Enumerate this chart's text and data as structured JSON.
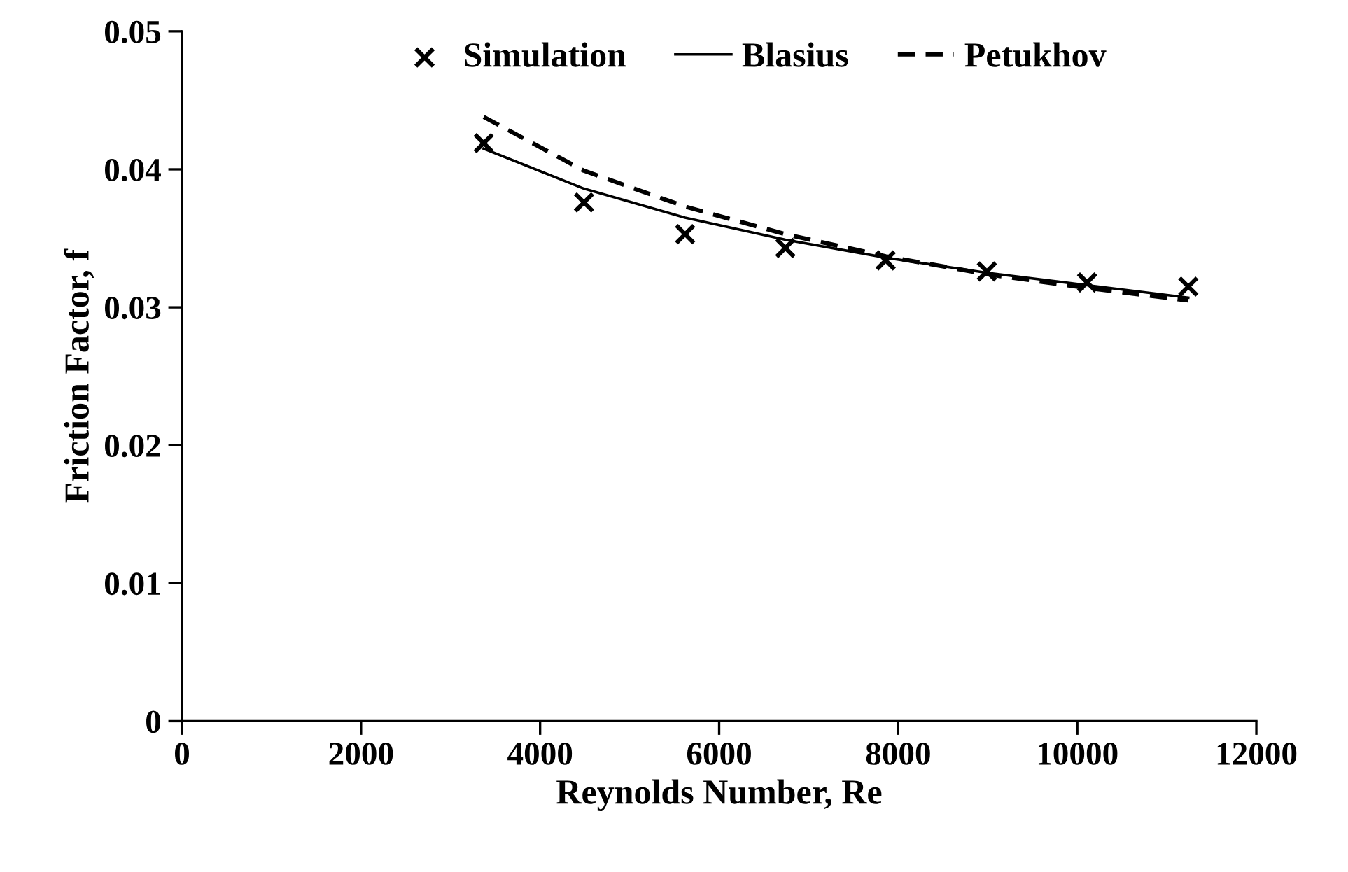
{
  "chart_data": {
    "type": "scatter",
    "xlabel": "Reynolds Number, Re",
    "ylabel": "Friction Factor, f",
    "x": [
      3370,
      4490,
      5620,
      6740,
      7860,
      8990,
      10110,
      11240
    ],
    "series": [
      {
        "name": "Simulation",
        "color": "#000000",
        "marker": "cross",
        "values": [
          0.0419,
          0.0376,
          0.0353,
          0.0343,
          0.0334,
          0.0326,
          0.0318,
          0.0315
        ]
      },
      {
        "name": "Blasius",
        "type": "line",
        "color": "#000000",
        "line_style": "solid",
        "values": [
          0.0415,
          0.0386,
          0.0365,
          0.0349,
          0.0336,
          0.0325,
          0.0316,
          0.0307
        ]
      },
      {
        "name": "Petukhov",
        "type": "line",
        "color": "#000000",
        "line_style": "dashed",
        "values": [
          0.0438,
          0.0399,
          0.0373,
          0.0353,
          0.0337,
          0.0324,
          0.0314,
          0.0305
        ]
      }
    ],
    "xlim": [
      0,
      12000
    ],
    "xticks": [
      0,
      2000,
      4000,
      6000,
      8000,
      10000,
      12000
    ],
    "ylim": [
      0,
      0.05
    ],
    "yticks": [
      {
        "value": 0,
        "label": "0"
      },
      0.01,
      0.02,
      0.03,
      0.04,
      0.05
    ],
    "grid": false,
    "legend": "top"
  }
}
